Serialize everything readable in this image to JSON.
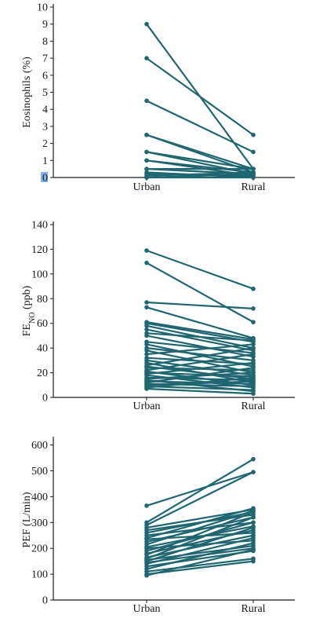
{
  "style": {
    "series_color": "#1f6670",
    "axis_color": "#1a1a1a",
    "highlight_color": "#7fb3e6"
  },
  "chart_data": [
    {
      "type": "line",
      "ylabel": "Eosinophils (%)",
      "ylabel_sub": "",
      "ylabel_rest": "",
      "categories": [
        "Urban",
        "Rural"
      ],
      "ylim": [
        0,
        10
      ],
      "yticks": [
        0,
        1,
        2,
        3,
        4,
        5,
        6,
        7,
        8,
        9,
        10
      ],
      "highlighted_tick": "0",
      "pairs": [
        [
          9.0,
          0.5
        ],
        [
          7.0,
          2.5
        ],
        [
          4.5,
          1.5
        ],
        [
          2.5,
          0.5
        ],
        [
          2.5,
          0.3
        ],
        [
          1.5,
          0.2
        ],
        [
          1.5,
          0.5
        ],
        [
          1.0,
          0.3
        ],
        [
          1.0,
          0.1
        ],
        [
          0.5,
          0.2
        ],
        [
          0.5,
          0.5
        ],
        [
          0.3,
          0.0
        ],
        [
          0.2,
          0.1
        ],
        [
          0.1,
          0.3
        ],
        [
          0.0,
          0.2
        ],
        [
          0.0,
          0.0
        ]
      ]
    },
    {
      "type": "line",
      "ylabel": "FE",
      "ylabel_sub": "NO",
      "ylabel_rest": " (ppb)",
      "categories": [
        "Urban",
        "Rural"
      ],
      "ylim": [
        0,
        140
      ],
      "yticks": [
        0,
        20,
        40,
        60,
        80,
        100,
        120,
        140
      ],
      "highlighted_tick": "",
      "pairs": [
        [
          119,
          88
        ],
        [
          109,
          61
        ],
        [
          77,
          72
        ],
        [
          73,
          48
        ],
        [
          61,
          47
        ],
        [
          60,
          45
        ],
        [
          58,
          40
        ],
        [
          55,
          38
        ],
        [
          52,
          46
        ],
        [
          50,
          33
        ],
        [
          45,
          36
        ],
        [
          43,
          25
        ],
        [
          40,
          30
        ],
        [
          38,
          20
        ],
        [
          35,
          43
        ],
        [
          32,
          27
        ],
        [
          30,
          18
        ],
        [
          28,
          12
        ],
        [
          26,
          40
        ],
        [
          25,
          15
        ],
        [
          24,
          22
        ],
        [
          22,
          35
        ],
        [
          21,
          10
        ],
        [
          20,
          17
        ],
        [
          19,
          28
        ],
        [
          18,
          8
        ],
        [
          16,
          14
        ],
        [
          15,
          20
        ],
        [
          14,
          5
        ],
        [
          13,
          11
        ],
        [
          12,
          24
        ],
        [
          11,
          9
        ],
        [
          10,
          13
        ],
        [
          9,
          6
        ],
        [
          8,
          16
        ],
        [
          7,
          3
        ]
      ]
    },
    {
      "type": "line",
      "ylabel": "PEF (L/min)",
      "ylabel_sub": "",
      "ylabel_rest": "",
      "categories": [
        "Urban",
        "Rural"
      ],
      "ylim": [
        0,
        620
      ],
      "yticks": [
        0,
        100,
        200,
        300,
        400,
        500,
        600
      ],
      "highlighted_tick": "",
      "pairs": [
        [
          365,
          495
        ],
        [
          300,
          545
        ],
        [
          290,
          495
        ],
        [
          280,
          350
        ],
        [
          270,
          330
        ],
        [
          260,
          340
        ],
        [
          250,
          300
        ],
        [
          240,
          355
        ],
        [
          235,
          260
        ],
        [
          225,
          320
        ],
        [
          215,
          345
        ],
        [
          205,
          285
        ],
        [
          200,
          230
        ],
        [
          190,
          300
        ],
        [
          180,
          270
        ],
        [
          175,
          340
        ],
        [
          165,
          250
        ],
        [
          160,
          320
        ],
        [
          155,
          210
        ],
        [
          150,
          280
        ],
        [
          145,
          200
        ],
        [
          140,
          240
        ],
        [
          130,
          190
        ],
        [
          120,
          220
        ],
        [
          110,
          160
        ],
        [
          100,
          150
        ],
        [
          95,
          195
        ]
      ]
    }
  ]
}
